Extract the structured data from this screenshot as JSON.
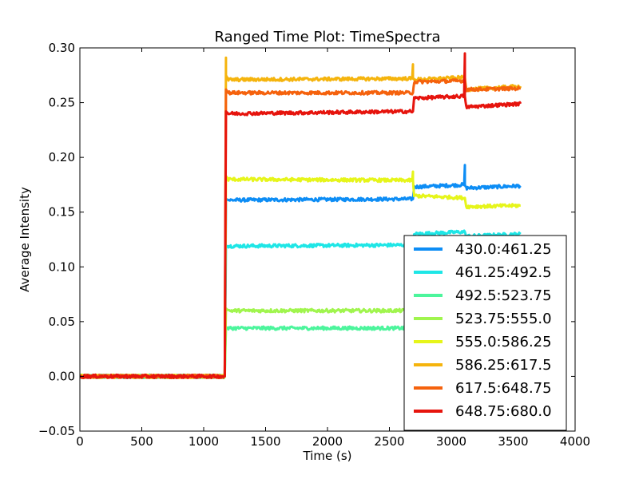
{
  "chart_data": {
    "type": "line",
    "title": "Ranged Time Plot: TimeSpectra",
    "xlabel": "Time (s)",
    "ylabel": "Average Intensity",
    "xlim": [
      0,
      4000
    ],
    "ylim": [
      -0.05,
      0.3
    ],
    "xticks": [
      0,
      500,
      1000,
      1500,
      2000,
      2500,
      3000,
      3500,
      4000
    ],
    "xtick_labels": [
      "0",
      "500",
      "1000",
      "1500",
      "2000",
      "2500",
      "3000",
      "3500",
      "4000"
    ],
    "yticks": [
      -0.05,
      0.0,
      0.05,
      0.1,
      0.15,
      0.2,
      0.25,
      0.3
    ],
    "ytick_labels": [
      "−0.05",
      "0.00",
      "0.05",
      "0.10",
      "0.15",
      "0.20",
      "0.25",
      "0.30"
    ],
    "grid": false,
    "legend_position": "lower-right",
    "x": [
      0,
      1170,
      1180,
      1200,
      2690,
      2700,
      3110,
      3120,
      3560
    ],
    "series": [
      {
        "name": "430.0:461.25",
        "color": "#0d8df5",
        "values": [
          0.0,
          0.0,
          0.162,
          0.161,
          0.162,
          0.173,
          0.175,
          0.172,
          0.174
        ]
      },
      {
        "name": "461.25:492.5",
        "color": "#1ee6e6",
        "values": [
          0.0,
          0.0,
          0.119,
          0.119,
          0.12,
          0.13,
          0.132,
          0.128,
          0.13
        ]
      },
      {
        "name": "492.5:523.75",
        "color": "#4cf59c",
        "values": [
          0.0,
          0.0,
          0.045,
          0.044,
          0.044,
          0.044,
          0.044,
          0.044,
          0.044
        ]
      },
      {
        "name": "523.75:555.0",
        "color": "#a0f54e",
        "values": [
          0.0,
          0.0,
          0.062,
          0.06,
          0.06,
          0.06,
          0.06,
          0.06,
          0.06
        ]
      },
      {
        "name": "555.0:586.25",
        "color": "#e6f51a",
        "values": [
          0.0,
          0.0,
          0.183,
          0.18,
          0.179,
          0.165,
          0.163,
          0.155,
          0.156
        ]
      },
      {
        "name": "586.25:617.5",
        "color": "#f5b40d",
        "values": [
          0.0,
          0.0,
          0.275,
          0.271,
          0.272,
          0.271,
          0.273,
          0.262,
          0.265
        ]
      },
      {
        "name": "617.5:648.75",
        "color": "#f5620d",
        "values": [
          0.0,
          0.0,
          0.262,
          0.259,
          0.259,
          0.269,
          0.27,
          0.262,
          0.263
        ]
      },
      {
        "name": "648.75:680.0",
        "color": "#e6140d",
        "values": [
          0.0,
          0.0,
          0.242,
          0.24,
          0.242,
          0.254,
          0.256,
          0.246,
          0.249
        ]
      }
    ],
    "annotations": [
      {
        "series": "586.25:617.5",
        "x": 1180,
        "y": 0.291
      },
      {
        "series": "586.25:617.5",
        "x": 2690,
        "y": 0.285
      },
      {
        "series": "648.75:680.0",
        "x": 3110,
        "y": 0.295
      },
      {
        "series": "430.0:461.25",
        "x": 3110,
        "y": 0.193
      },
      {
        "series": "555.0:586.25",
        "x": 2690,
        "y": 0.187
      }
    ]
  }
}
